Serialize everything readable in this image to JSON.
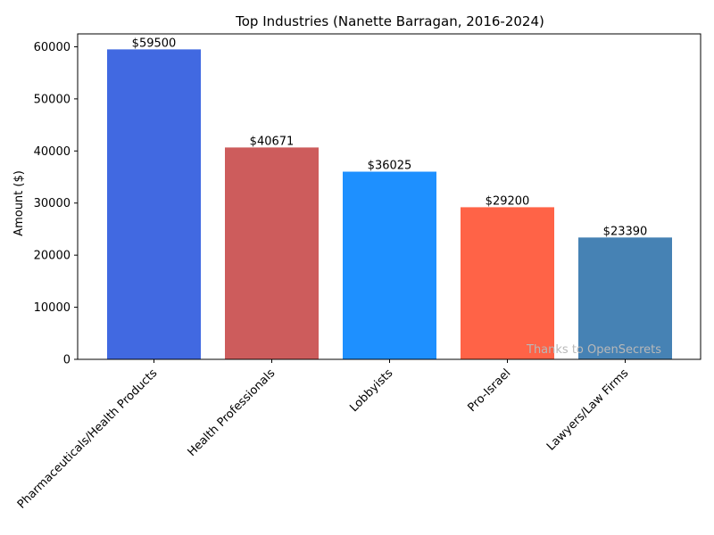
{
  "chart_data": {
    "type": "bar",
    "title": "Top Industries (Nanette Barragan, 2016-2024)",
    "ylabel": "Amount ($)",
    "xlabel": "",
    "categories": [
      "Pharmaceuticals/Health Products",
      "Health Professionals",
      "Lobbyists",
      "Pro-Israel",
      "Lawyers/Law Firms"
    ],
    "values": [
      59500,
      40671,
      36025,
      29200,
      23390
    ],
    "value_labels": [
      "$59500",
      "$40671",
      "$36025",
      "$29200",
      "$23390"
    ],
    "colors": [
      "#4169E1",
      "#CD5C5C",
      "#1E90FF",
      "#FF6347",
      "#4682B4"
    ],
    "ylim": [
      0,
      62475
    ],
    "yticks": [
      0,
      10000,
      20000,
      30000,
      40000,
      50000,
      60000
    ],
    "ytick_labels": [
      "0",
      "10000",
      "20000",
      "30000",
      "40000",
      "50000",
      "60000"
    ],
    "grid": false,
    "legend": "none",
    "watermark": "Thanks to OpenSecrets"
  }
}
